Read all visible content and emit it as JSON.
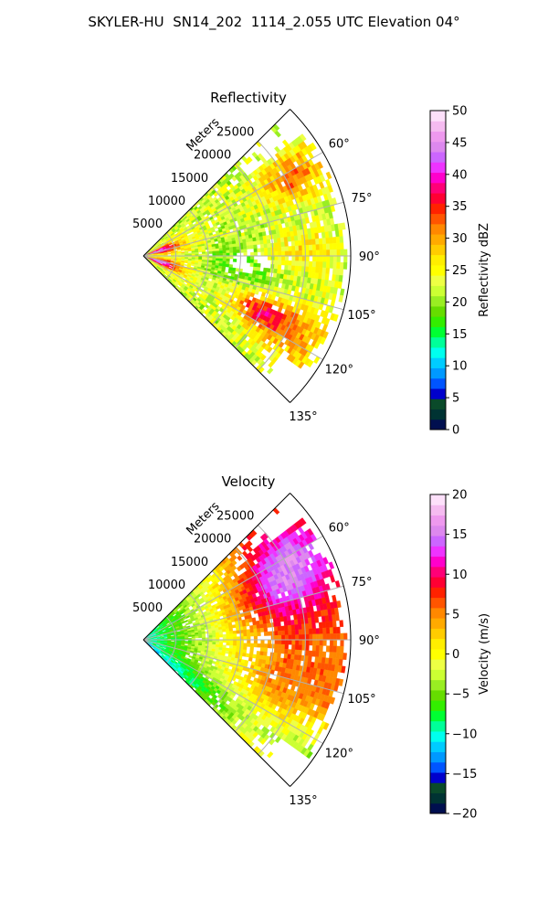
{
  "figure": {
    "title": "SKYLER-HU  SN14_202  1114_2.055 UTC Elevation 04°"
  },
  "chart_data": [
    {
      "type": "heatmap",
      "projection": "polar-sector",
      "title": "Reflectivity",
      "range_label": "Meters",
      "range_ticks": [
        5000,
        10000,
        15000,
        20000,
        25000
      ],
      "range_tick_labels": [
        "5000",
        "10000",
        "15000",
        "20000",
        "25000"
      ],
      "rlim": [
        0,
        32000
      ],
      "theta_range_deg": [
        45,
        135
      ],
      "theta_ticks": [
        60,
        75,
        90,
        105,
        120,
        135
      ],
      "theta_tick_labels": [
        "60°",
        "75°",
        "90°",
        "105°",
        "120°",
        "135°"
      ],
      "grid": true,
      "colorbar": {
        "label": "Reflectivity dBZ",
        "range": [
          0,
          50
        ],
        "ticks": [
          0,
          5,
          10,
          15,
          20,
          25,
          30,
          35,
          40,
          45,
          50
        ],
        "tick_labels": [
          "0",
          "5",
          "10",
          "15",
          "20",
          "25",
          "30",
          "35",
          "40",
          "45",
          "50"
        ]
      },
      "field_summary": [
        {
          "region": "near range (<4000 m), az 65–80°",
          "value": 38
        },
        {
          "region": "near range (<4000 m), az 100–115°",
          "value": 40
        },
        {
          "region": "mid range, az 90–100°",
          "value": 20
        },
        {
          "region": "far range, az 60–70°",
          "value": 30
        },
        {
          "region": "far range, az 110–120°",
          "value": 35
        },
        {
          "region": "general background",
          "value": 22
        }
      ]
    },
    {
      "type": "heatmap",
      "projection": "polar-sector",
      "title": "Velocity",
      "range_label": "Meters",
      "range_ticks": [
        5000,
        10000,
        15000,
        20000,
        25000
      ],
      "range_tick_labels": [
        "5000",
        "10000",
        "15000",
        "20000",
        "25000"
      ],
      "rlim": [
        0,
        32000
      ],
      "theta_range_deg": [
        45,
        135
      ],
      "theta_ticks": [
        60,
        75,
        90,
        105,
        120,
        135
      ],
      "theta_tick_labels": [
        "60°",
        "75°",
        "90°",
        "105°",
        "120°",
        "135°"
      ],
      "grid": true,
      "colorbar": {
        "label": "Velocity (m/s)",
        "range": [
          -20,
          20
        ],
        "ticks": [
          -20,
          -15,
          -10,
          -5,
          0,
          5,
          10,
          15,
          20
        ],
        "tick_labels": [
          "−20",
          "−15",
          "−10",
          "−5",
          "0",
          "5",
          "10",
          "15",
          "20"
        ]
      },
      "field_summary": [
        {
          "region": "near range (<6000 m)",
          "value": -9
        },
        {
          "region": "6000–12000 m",
          "value": -3
        },
        {
          "region": "12000–20000 m, az 90–110°",
          "value": 3
        },
        {
          "region": "far range, az 55–75°",
          "value": 10
        },
        {
          "region": "far range, az 110–130°",
          "value": -3
        }
      ]
    }
  ],
  "colors": {
    "background": "#ffffff",
    "grid": "#b0b0b0",
    "reflectivity_scale": [
      "#000f4f",
      "#003333",
      "#0a4a2a",
      "#0000cc",
      "#0055ff",
      "#0099ff",
      "#00ccff",
      "#00ffee",
      "#00ff99",
      "#00ff33",
      "#33ee00",
      "#66dd00",
      "#99ee22",
      "#ccff33",
      "#eeff44",
      "#ffff00",
      "#ffee00",
      "#ffcc00",
      "#ffaa00",
      "#ff8800",
      "#ff5500",
      "#ff2200",
      "#ff0033",
      "#ff0077",
      "#ff00cc",
      "#ee33ff",
      "#cc66ff",
      "#dd88ee",
      "#ee99ee",
      "#f5bbf0",
      "#fde0fa"
    ],
    "velocity_scale": [
      "#000f4f",
      "#003333",
      "#0a4a2a",
      "#0000cc",
      "#0055ff",
      "#0099ff",
      "#00ccff",
      "#00ffee",
      "#00ff99",
      "#00ff33",
      "#33ee00",
      "#66dd00",
      "#99ee22",
      "#ccff33",
      "#eeff44",
      "#ffff00",
      "#ffee00",
      "#ffcc00",
      "#ffaa00",
      "#ff8800",
      "#ff5500",
      "#ff2200",
      "#ff0033",
      "#ff0077",
      "#ff00cc",
      "#ee33ff",
      "#cc66ff",
      "#dd88ee",
      "#ee99ee",
      "#f5bbf0",
      "#fde0fa"
    ]
  }
}
